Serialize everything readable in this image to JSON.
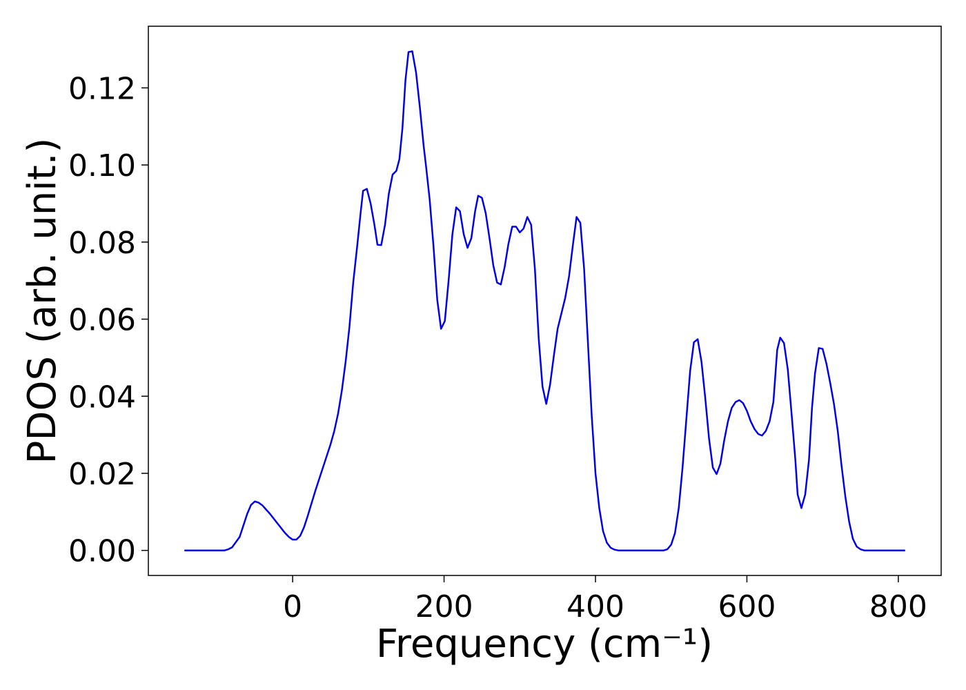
{
  "chart_data": {
    "type": "line",
    "xlabel": "Frequency (cm⁻¹)",
    "ylabel": "PDOS (arb. unit.)",
    "x": [
      -143,
      -90,
      -85,
      -80,
      -70,
      -60,
      -55,
      -50,
      -45,
      -40,
      -30,
      -20,
      -10,
      -5,
      0,
      5,
      10,
      15,
      20,
      30,
      40,
      50,
      55,
      60,
      65,
      70,
      75,
      80,
      85,
      90,
      93,
      98,
      103,
      108,
      112,
      117,
      122,
      127,
      132,
      137,
      141,
      145,
      149,
      153,
      158,
      163,
      168,
      173,
      176,
      181,
      186,
      191,
      196,
      201,
      206,
      211,
      216,
      221,
      226,
      231,
      236,
      241,
      245,
      250,
      255,
      260,
      265,
      270,
      275,
      280,
      285,
      290,
      295,
      300,
      305,
      310,
      315,
      320,
      325,
      330,
      335,
      340,
      345,
      350,
      355,
      360,
      365,
      370,
      375,
      380,
      385,
      390,
      395,
      400,
      405,
      410,
      415,
      420,
      425,
      430,
      490,
      495,
      500,
      505,
      510,
      515,
      520,
      525,
      530,
      535,
      540,
      545,
      550,
      555,
      560,
      565,
      570,
      575,
      580,
      585,
      590,
      595,
      600,
      605,
      610,
      615,
      620,
      625,
      630,
      635,
      640,
      644,
      649,
      654,
      659,
      664,
      667,
      672,
      677,
      682,
      686,
      690,
      695,
      700,
      705,
      710,
      715,
      720,
      725,
      730,
      735,
      740,
      745,
      750,
      755,
      809
    ],
    "series": [
      {
        "name": "PDOS",
        "color": "#0000ee",
        "values": [
          0,
          0,
          0.0003,
          0.0008,
          0.0035,
          0.0095,
          0.0118,
          0.0127,
          0.0124,
          0.0117,
          0.0095,
          0.007,
          0.0045,
          0.0035,
          0.0028,
          0.0028,
          0.0038,
          0.006,
          0.009,
          0.0155,
          0.0215,
          0.0275,
          0.031,
          0.0355,
          0.0415,
          0.049,
          0.058,
          0.0695,
          0.0785,
          0.088,
          0.0933,
          0.0938,
          0.09,
          0.0845,
          0.0793,
          0.0792,
          0.0845,
          0.0925,
          0.0975,
          0.0985,
          0.1015,
          0.1095,
          0.122,
          0.1293,
          0.1295,
          0.124,
          0.115,
          0.105,
          0.1,
          0.091,
          0.079,
          0.065,
          0.0575,
          0.0595,
          0.07,
          0.082,
          0.089,
          0.088,
          0.082,
          0.0785,
          0.081,
          0.088,
          0.092,
          0.0915,
          0.0875,
          0.081,
          0.074,
          0.0695,
          0.069,
          0.0735,
          0.0795,
          0.084,
          0.084,
          0.0825,
          0.0835,
          0.0865,
          0.0845,
          0.073,
          0.055,
          0.0425,
          0.038,
          0.043,
          0.0505,
          0.0575,
          0.0615,
          0.0655,
          0.071,
          0.079,
          0.0865,
          0.085,
          0.073,
          0.054,
          0.035,
          0.02,
          0.011,
          0.005,
          0.002,
          0.0007,
          0.0002,
          0,
          0,
          0.0003,
          0.0015,
          0.0045,
          0.011,
          0.0215,
          0.034,
          0.0465,
          0.054,
          0.0548,
          0.049,
          0.0395,
          0.029,
          0.0215,
          0.0198,
          0.0225,
          0.0285,
          0.0335,
          0.037,
          0.0385,
          0.039,
          0.0382,
          0.0362,
          0.0335,
          0.0315,
          0.0302,
          0.0298,
          0.031,
          0.0335,
          0.0385,
          0.052,
          0.0552,
          0.0538,
          0.047,
          0.0355,
          0.0235,
          0.0145,
          0.011,
          0.0145,
          0.0235,
          0.037,
          0.046,
          0.0525,
          0.0523,
          0.0485,
          0.0435,
          0.038,
          0.031,
          0.022,
          0.014,
          0.0075,
          0.003,
          0.001,
          0.0003,
          0,
          0
        ]
      }
    ],
    "xlim": [
      -190.6,
      856.6
    ],
    "ylim": [
      -0.0065,
      0.136
    ],
    "xticks": [
      0,
      200,
      400,
      600,
      800
    ],
    "yticks": [
      {
        "value": 0,
        "label": "0.00"
      },
      {
        "value": 0.02,
        "label": "0.02"
      },
      {
        "value": 0.04,
        "label": "0.04"
      },
      {
        "value": 0.06,
        "label": "0.06"
      },
      {
        "value": 0.08,
        "label": "0.08"
      },
      {
        "value": 0.1,
        "label": "0.10"
      },
      {
        "value": 0.12,
        "label": "0.12"
      }
    ],
    "grid": false
  }
}
